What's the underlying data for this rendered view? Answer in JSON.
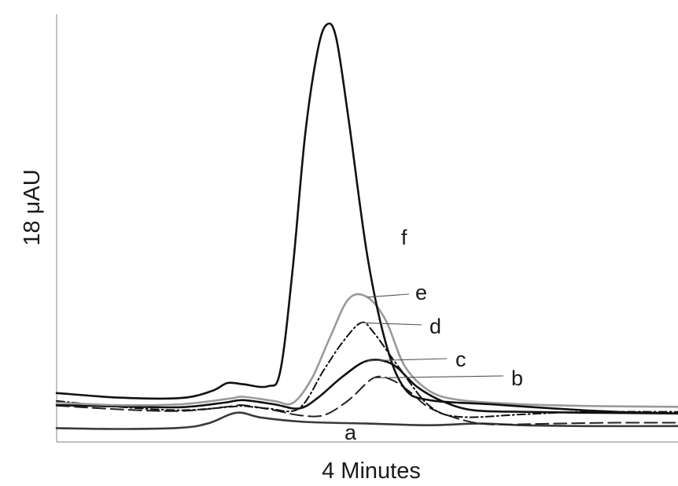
{
  "chart_data": {
    "type": "line",
    "title": "",
    "xlabel": "4 Minutes",
    "ylabel": "18 μAU",
    "xlim": [
      0,
      1
    ],
    "ylim": [
      0,
      1
    ],
    "grid": false,
    "legend": "inline curve labels",
    "series": [
      {
        "name": "a",
        "color": "#3a3a3a",
        "style": "solid",
        "points": [
          [
            0,
            0.033
          ],
          [
            0.1,
            0.031
          ],
          [
            0.2,
            0.034
          ],
          [
            0.245,
            0.045
          ],
          [
            0.29,
            0.07
          ],
          [
            0.33,
            0.058
          ],
          [
            0.4,
            0.048
          ],
          [
            0.5,
            0.044
          ],
          [
            0.6,
            0.04
          ],
          [
            0.68,
            0.044
          ],
          [
            0.75,
            0.04
          ],
          [
            0.85,
            0.038
          ],
          [
            1,
            0.038
          ]
        ]
      },
      {
        "name": "b",
        "color": "#222222",
        "style": "longdash",
        "points": [
          [
            0,
            0.087
          ],
          [
            0.1,
            0.078
          ],
          [
            0.2,
            0.074
          ],
          [
            0.28,
            0.085
          ],
          [
            0.3,
            0.088
          ],
          [
            0.35,
            0.076
          ],
          [
            0.39,
            0.064
          ],
          [
            0.43,
            0.064
          ],
          [
            0.47,
            0.1
          ],
          [
            0.51,
            0.153
          ],
          [
            0.54,
            0.148
          ],
          [
            0.57,
            0.118
          ],
          [
            0.6,
            0.082
          ],
          [
            0.65,
            0.054
          ],
          [
            0.7,
            0.042
          ],
          [
            0.8,
            0.044
          ],
          [
            0.9,
            0.046
          ],
          [
            1,
            0.046
          ]
        ]
      },
      {
        "name": "c",
        "color": "#111111",
        "style": "solid",
        "points": [
          [
            0,
            0.088
          ],
          [
            0.1,
            0.085
          ],
          [
            0.2,
            0.083
          ],
          [
            0.27,
            0.094
          ],
          [
            0.3,
            0.1
          ],
          [
            0.35,
            0.09
          ],
          [
            0.39,
            0.08
          ],
          [
            0.42,
            0.105
          ],
          [
            0.46,
            0.156
          ],
          [
            0.5,
            0.194
          ],
          [
            0.54,
            0.186
          ],
          [
            0.58,
            0.132
          ],
          [
            0.62,
            0.098
          ],
          [
            0.67,
            0.076
          ],
          [
            0.75,
            0.072
          ],
          [
            0.85,
            0.07
          ],
          [
            1,
            0.068
          ]
        ]
      },
      {
        "name": "d",
        "color": "#111111",
        "style": "dashdot",
        "points": [
          [
            0,
            0.098
          ],
          [
            0.1,
            0.084
          ],
          [
            0.2,
            0.076
          ],
          [
            0.28,
            0.084
          ],
          [
            0.3,
            0.086
          ],
          [
            0.34,
            0.08
          ],
          [
            0.39,
            0.08
          ],
          [
            0.43,
            0.172
          ],
          [
            0.46,
            0.238
          ],
          [
            0.49,
            0.285
          ],
          [
            0.51,
            0.262
          ],
          [
            0.55,
            0.18
          ],
          [
            0.6,
            0.086
          ],
          [
            0.65,
            0.06
          ],
          [
            0.75,
            0.066
          ],
          [
            0.85,
            0.072
          ],
          [
            1,
            0.072
          ]
        ]
      },
      {
        "name": "e",
        "color": "#9a9a9a",
        "style": "solid",
        "points": [
          [
            0,
            0.094
          ],
          [
            0.1,
            0.088
          ],
          [
            0.2,
            0.09
          ],
          [
            0.28,
            0.104
          ],
          [
            0.3,
            0.108
          ],
          [
            0.35,
            0.098
          ],
          [
            0.38,
            0.093
          ],
          [
            0.41,
            0.15
          ],
          [
            0.44,
            0.25
          ],
          [
            0.47,
            0.342
          ],
          [
            0.5,
            0.346
          ],
          [
            0.53,
            0.29
          ],
          [
            0.56,
            0.182
          ],
          [
            0.6,
            0.122
          ],
          [
            0.65,
            0.1
          ],
          [
            0.75,
            0.09
          ],
          [
            0.85,
            0.086
          ],
          [
            1,
            0.084
          ]
        ]
      },
      {
        "name": "f",
        "color": "#111111",
        "style": "solid",
        "points": [
          [
            0,
            0.117
          ],
          [
            0.1,
            0.106
          ],
          [
            0.2,
            0.105
          ],
          [
            0.25,
            0.122
          ],
          [
            0.275,
            0.141
          ],
          [
            0.3,
            0.138
          ],
          [
            0.34,
            0.133
          ],
          [
            0.36,
            0.17
          ],
          [
            0.38,
            0.415
          ],
          [
            0.4,
            0.735
          ],
          [
            0.42,
            0.935
          ],
          [
            0.435,
            0.998
          ],
          [
            0.45,
            0.965
          ],
          [
            0.47,
            0.77
          ],
          [
            0.5,
            0.445
          ],
          [
            0.53,
            0.235
          ],
          [
            0.56,
            0.128
          ],
          [
            0.6,
            0.1
          ],
          [
            0.7,
            0.09
          ],
          [
            0.8,
            0.08
          ],
          [
            0.9,
            0.072
          ],
          [
            1,
            0.068
          ]
        ]
      }
    ]
  }
}
